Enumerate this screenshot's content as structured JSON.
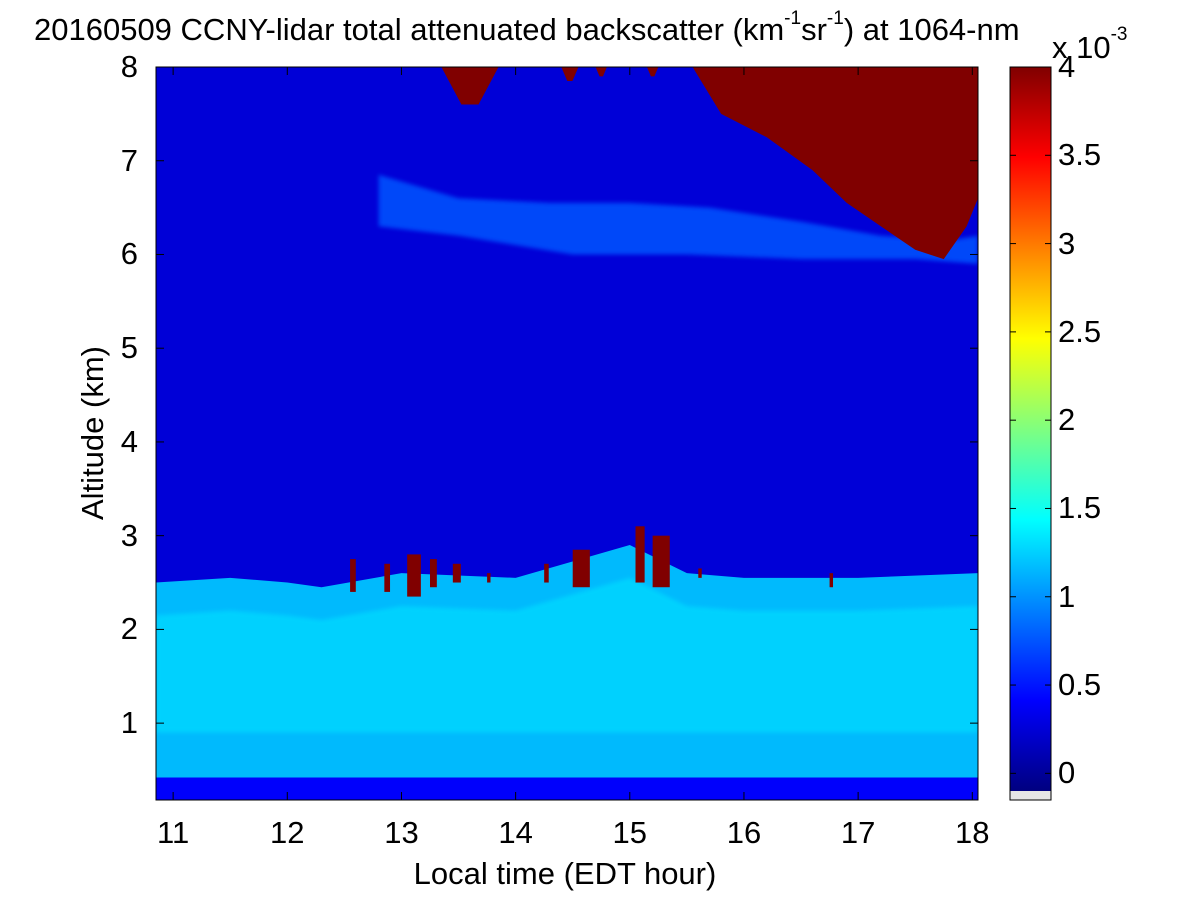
{
  "chart_data": {
    "type": "heatmap",
    "title_parts": {
      "prefix": "20160509 CCNY-lidar total attenuated backscatter (km",
      "sup1": "-1",
      "mid": "sr",
      "sup2": "-1",
      "suffix": ") at 1064-nm"
    },
    "xlabel": "Local time (EDT hour)",
    "ylabel": "Altitude (km)",
    "xlim": [
      10.85,
      18.05
    ],
    "ylim": [
      0.18,
      8
    ],
    "x_ticks": [
      11,
      12,
      13,
      14,
      15,
      16,
      17,
      18
    ],
    "y_ticks": [
      1,
      2,
      3,
      4,
      5,
      6,
      7,
      8
    ],
    "colorbar": {
      "colormap": "jet",
      "range": [
        -0.1,
        4
      ],
      "ticks": [
        "0",
        "0.5",
        "1",
        "1.5",
        "2",
        "2.5",
        "3",
        "3.5",
        "4"
      ],
      "tick_values": [
        0,
        0.5,
        1,
        1.5,
        2,
        2.5,
        3,
        3.5,
        4
      ],
      "multiplier_base": "x 10",
      "multiplier_exp": "-3"
    },
    "features": {
      "boundary_layer_top_km": [
        [
          10.85,
          2.5
        ],
        [
          11.5,
          2.55
        ],
        [
          12.0,
          2.5
        ],
        [
          12.3,
          2.45
        ],
        [
          13.0,
          2.6
        ],
        [
          14.0,
          2.55
        ],
        [
          15.0,
          2.9
        ],
        [
          15.5,
          2.6
        ],
        [
          16.0,
          2.55
        ],
        [
          17.0,
          2.55
        ],
        [
          18.05,
          2.6
        ]
      ],
      "boundary_layer_backscatter": 1.2,
      "near_surface_backscatter": 0.4,
      "free_troposphere_backscatter": 0.25,
      "aloft_aerosol_layer_backscatter": 0.75,
      "cloud_backscatter": 4,
      "upper_cloud_base_km": [
        [
          15.55,
          8.0
        ],
        [
          15.8,
          7.5
        ],
        [
          16.2,
          7.25
        ],
        [
          16.6,
          6.9
        ],
        [
          16.9,
          6.55
        ],
        [
          17.2,
          6.3
        ],
        [
          17.5,
          6.05
        ],
        [
          17.75,
          5.95
        ],
        [
          17.95,
          6.3
        ],
        [
          18.05,
          6.6
        ]
      ],
      "bl_top_clouds": [
        {
          "x": 12.55,
          "w": 0.05,
          "ybot": 2.4,
          "ytop": 2.75
        },
        {
          "x": 12.85,
          "w": 0.05,
          "ybot": 2.4,
          "ytop": 2.7
        },
        {
          "x": 13.05,
          "w": 0.12,
          "ybot": 2.35,
          "ytop": 2.8
        },
        {
          "x": 13.25,
          "w": 0.06,
          "ybot": 2.45,
          "ytop": 2.75
        },
        {
          "x": 13.45,
          "w": 0.07,
          "ybot": 2.5,
          "ytop": 2.7
        },
        {
          "x": 13.75,
          "w": 0.03,
          "ybot": 2.5,
          "ytop": 2.6
        },
        {
          "x": 14.25,
          "w": 0.04,
          "ybot": 2.5,
          "ytop": 2.7
        },
        {
          "x": 14.5,
          "w": 0.15,
          "ybot": 2.45,
          "ytop": 2.85
        },
        {
          "x": 15.05,
          "w": 0.08,
          "ybot": 2.5,
          "ytop": 3.1
        },
        {
          "x": 15.2,
          "w": 0.15,
          "ybot": 2.45,
          "ytop": 3.0
        },
        {
          "x": 15.6,
          "w": 0.03,
          "ybot": 2.55,
          "ytop": 2.65
        },
        {
          "x": 16.75,
          "w": 0.03,
          "ybot": 2.45,
          "ytop": 2.6
        }
      ],
      "top_cloud_patches": [
        {
          "x0": 13.35,
          "x1": 13.85,
          "ybot": 7.6
        },
        {
          "x0": 14.4,
          "x1": 14.55,
          "ybot": 7.85
        },
        {
          "x0": 14.7,
          "x1": 14.8,
          "ybot": 7.9
        },
        {
          "x0": 15.15,
          "x1": 15.25,
          "ybot": 7.9
        }
      ]
    }
  }
}
